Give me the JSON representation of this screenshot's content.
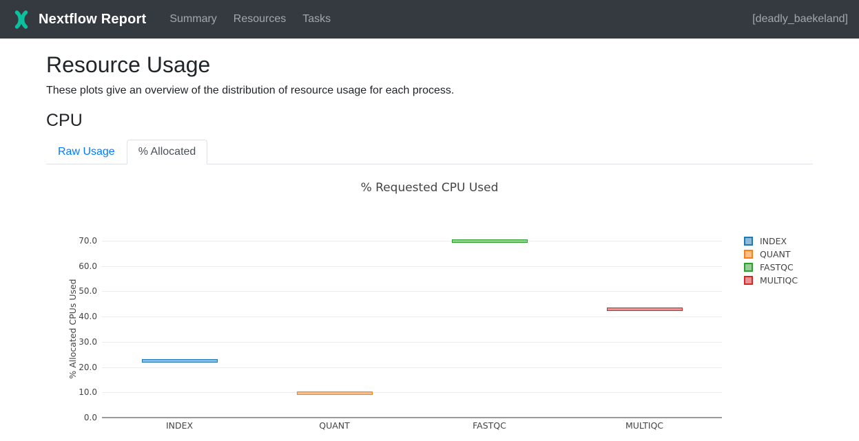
{
  "navbar": {
    "brand": "Nextflow Report",
    "links": [
      {
        "label": "Summary"
      },
      {
        "label": "Resources"
      },
      {
        "label": "Tasks"
      }
    ],
    "run_name": "[deadly_baekeland]",
    "colors": {
      "bg": "#343a40",
      "logo_teal": "#0dc09d"
    }
  },
  "page": {
    "title": "Resource Usage",
    "description": "These plots give an overview of the distribution of resource usage for each process.",
    "section_title": "CPU"
  },
  "tabs": [
    {
      "label": "Raw Usage",
      "active": false
    },
    {
      "label": "% Allocated",
      "active": true
    }
  ],
  "chart_data": {
    "type": "box",
    "title": "% Requested CPU Used",
    "xlabel": "",
    "ylabel": "% Allocated CPUs Used",
    "categories": [
      "INDEX",
      "QUANT",
      "FASTQC",
      "MULTIQC"
    ],
    "series": [
      {
        "name": "INDEX",
        "value": 22.6,
        "color": "#1f77b4"
      },
      {
        "name": "QUANT",
        "value": 9.7,
        "color": "#ff7f0e"
      },
      {
        "name": "FASTQC",
        "value": 69.8,
        "color": "#2ca02c"
      },
      {
        "name": "MULTIQC",
        "value": 43.0,
        "color": "#d62728"
      }
    ],
    "yticks": [
      0,
      10,
      20,
      30,
      40,
      50,
      60,
      70
    ],
    "ytick_labels": [
      "0.0",
      "10.0",
      "20.0",
      "30.0",
      "40.0",
      "50.0",
      "60.0",
      "70.0"
    ],
    "ylim": [
      0,
      74
    ],
    "grid": true,
    "legend_position": "right"
  }
}
